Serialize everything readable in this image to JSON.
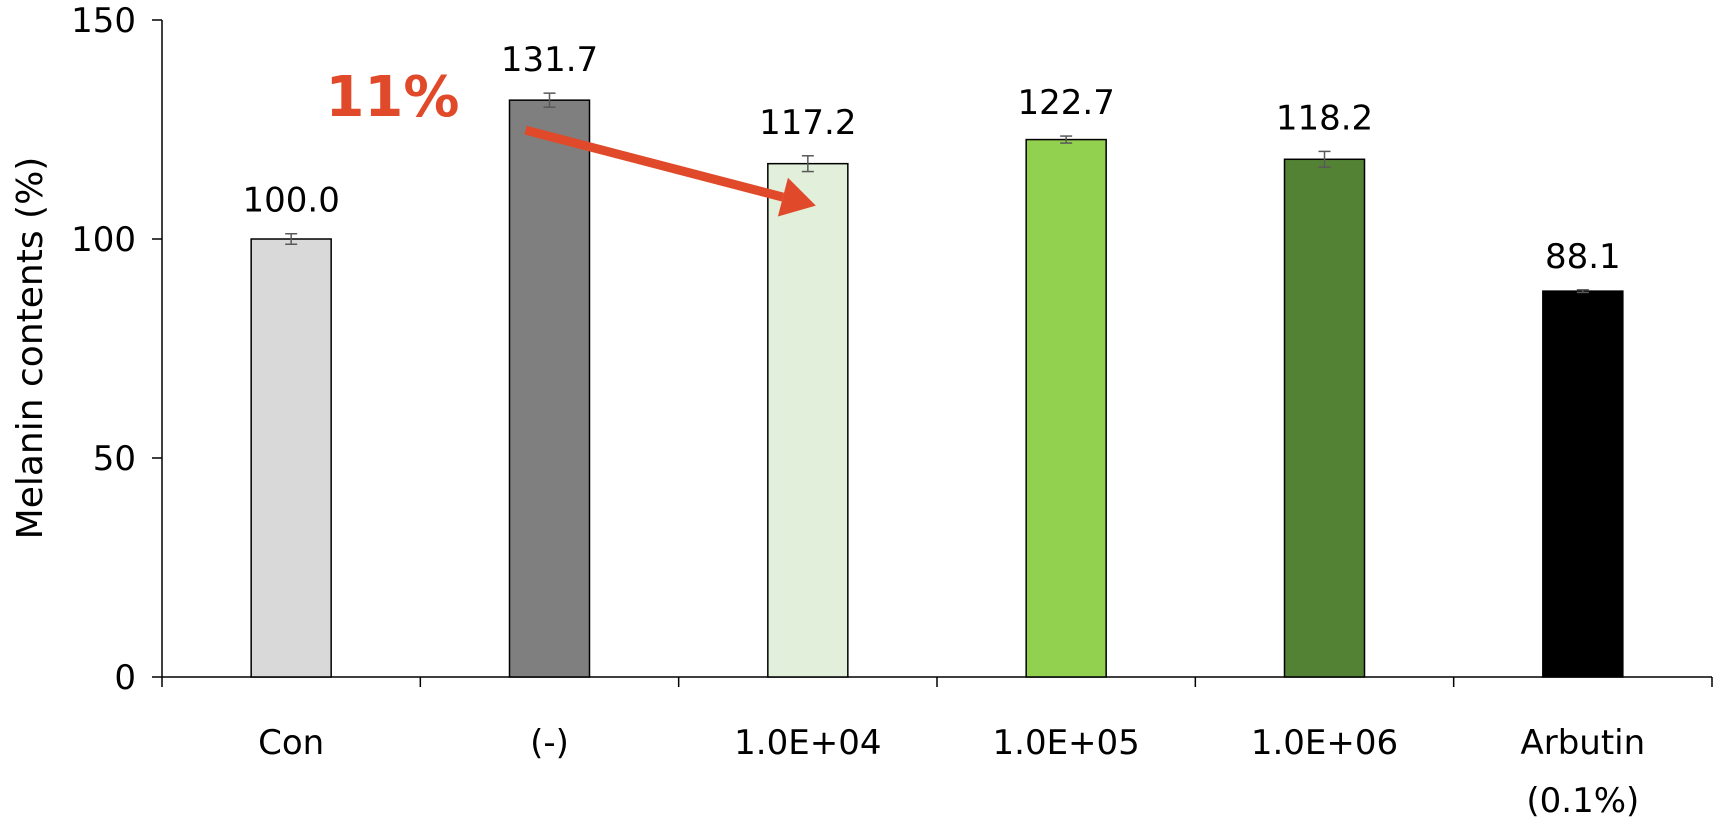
{
  "chart_data": {
    "type": "bar",
    "ylabel": "Melanin contents (%)",
    "ylim": [
      0,
      150
    ],
    "yticks": [
      0,
      50,
      100,
      150
    ],
    "grid": false,
    "legend": "none",
    "categories": [
      {
        "line1": "Con",
        "line2": ""
      },
      {
        "line1": "(-)",
        "line2": ""
      },
      {
        "line1": "1.0E+04",
        "line2": ""
      },
      {
        "line1": "1.0E+05",
        "line2": ""
      },
      {
        "line1": "1.0E+06",
        "line2": ""
      },
      {
        "line1": "Arbutin",
        "line2": "(0.1%)"
      }
    ],
    "values": [
      100.0,
      131.7,
      117.2,
      122.7,
      118.2,
      88.1
    ],
    "value_labels": [
      "100.0",
      "131.7",
      "117.2",
      "122.7",
      "118.2",
      "88.1"
    ],
    "errors": [
      1.2,
      1.6,
      1.8,
      0.8,
      1.8,
      0.3
    ],
    "colors": [
      "#d9d9d9",
      "#7f7f7f",
      "#e2efda",
      "#92d050",
      "#548235",
      "#000000"
    ],
    "annotation": {
      "text": "11%",
      "color": "#e04a2a",
      "from_category": 1,
      "to_category": 2
    }
  }
}
